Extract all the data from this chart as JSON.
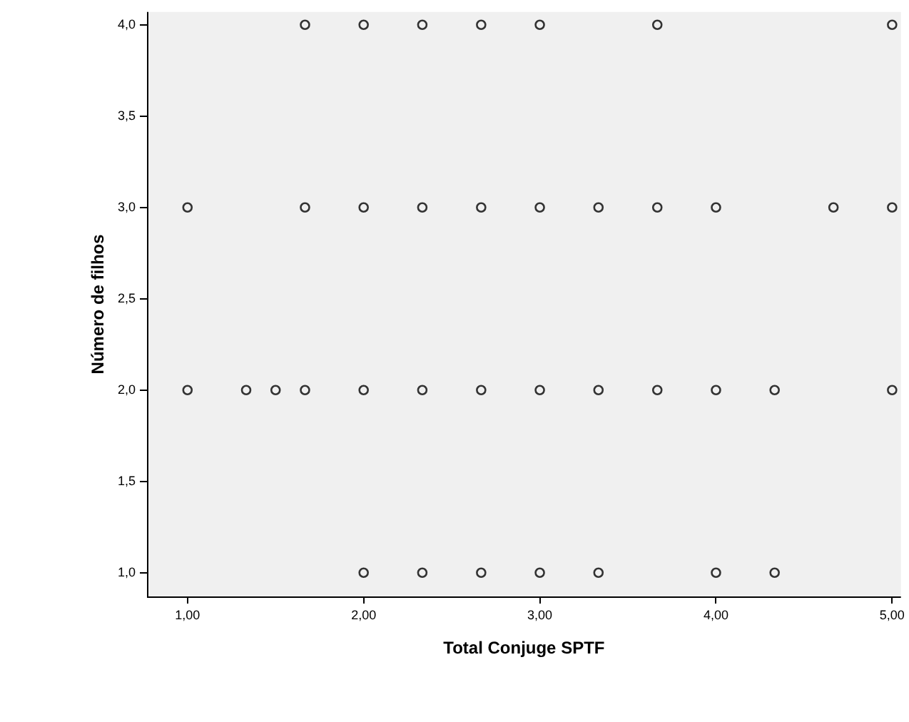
{
  "chart_data": {
    "type": "scatter",
    "xlabel": "Total Conjuge SPTF",
    "ylabel": "Número de filhos",
    "x": [
      1.667,
      2,
      2.333,
      2.667,
      3,
      3.667,
      5,
      1,
      1.667,
      2,
      2.333,
      2.667,
      3,
      3.333,
      3.667,
      4,
      4.667,
      5,
      1,
      1.333,
      1.5,
      1.667,
      2,
      2.333,
      2.667,
      3,
      3.333,
      3.667,
      4,
      4.333,
      5,
      2,
      2.333,
      2.667,
      3,
      3.333,
      4,
      4.333
    ],
    "values": [
      4,
      4,
      4,
      4,
      4,
      4,
      4,
      3,
      3,
      3,
      3,
      3,
      3,
      3,
      3,
      3,
      3,
      3,
      2,
      2,
      2,
      2,
      2,
      2,
      2,
      2,
      2,
      2,
      2,
      2,
      2,
      1,
      1,
      1,
      1,
      1,
      1,
      1
    ],
    "color": "#333333",
    "marker": "circle",
    "grid": false,
    "legend": false,
    "xlim": [
      0.77,
      5.05
    ],
    "xticks": [
      {
        "value": 1,
        "label": "1,00"
      },
      {
        "value": 2,
        "label": "2,00"
      },
      {
        "value": 3,
        "label": "3,00"
      },
      {
        "value": 4,
        "label": "4,00"
      },
      {
        "value": 5,
        "label": "5,00"
      }
    ],
    "ylim": [
      0.87,
      4.07
    ],
    "yticks": [
      {
        "value": 1,
        "label": "1,0"
      },
      {
        "value": 1.5,
        "label": "1,5"
      },
      {
        "value": 2,
        "label": "2,0"
      },
      {
        "value": 2.5,
        "label": "2,5"
      },
      {
        "value": 3,
        "label": "3,0"
      },
      {
        "value": 3.5,
        "label": "3,5"
      },
      {
        "value": 4,
        "label": "4,0"
      }
    ]
  }
}
